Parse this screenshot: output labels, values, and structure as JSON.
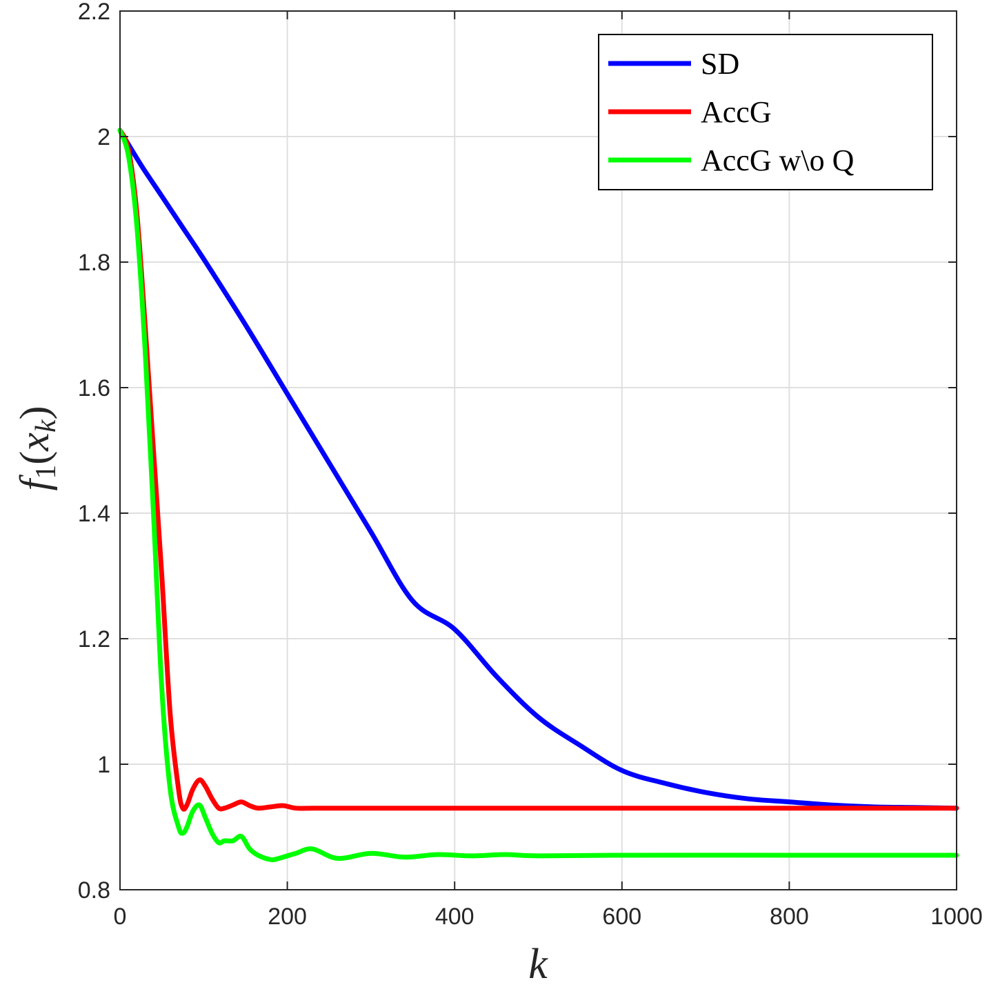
{
  "chart_data": {
    "type": "line",
    "title": "",
    "xlabel": "k",
    "ylabel": "f_1(x_k)",
    "ylabel_parts": {
      "f": "f",
      "sub1": "1",
      "open": "(",
      "x": "x",
      "subk": "k",
      "close": ")"
    },
    "xlim": [
      0,
      1000
    ],
    "ylim": [
      0.8,
      2.2
    ],
    "xticks": [
      0,
      200,
      400,
      600,
      800,
      1000
    ],
    "xtick_labels": [
      "0",
      "200",
      "400",
      "600",
      "800",
      "1000"
    ],
    "yticks": [
      0.8,
      1.0,
      1.2,
      1.4,
      1.6,
      1.8,
      2.0,
      2.2
    ],
    "ytick_labels": [
      "0.8",
      "1",
      "1.2",
      "1.4",
      "1.6",
      "1.8",
      "2",
      "2.2"
    ],
    "grid": true,
    "legend_position": "top-right",
    "series": [
      {
        "name": "SD",
        "color": "#0000ff",
        "x": [
          0,
          25,
          50,
          75,
          100,
          150,
          200,
          250,
          300,
          350,
          400,
          450,
          500,
          550,
          600,
          650,
          700,
          750,
          800,
          850,
          900,
          950,
          1000
        ],
        "y": [
          2.01,
          1.955,
          1.905,
          1.855,
          1.805,
          1.7,
          1.59,
          1.48,
          1.37,
          1.26,
          1.215,
          1.14,
          1.075,
          1.03,
          0.99,
          0.97,
          0.955,
          0.945,
          0.94,
          0.935,
          0.932,
          0.931,
          0.93
        ]
      },
      {
        "name": "AccG",
        "color": "#ff0000",
        "x": [
          0,
          10,
          20,
          30,
          40,
          50,
          60,
          70,
          75,
          80,
          87,
          95,
          102,
          110,
          118,
          125,
          135,
          145,
          155,
          165,
          180,
          195,
          210,
          230,
          250,
          300,
          400,
          600,
          800,
          1000
        ],
        "y": [
          2.01,
          1.98,
          1.88,
          1.7,
          1.5,
          1.3,
          1.08,
          0.96,
          0.93,
          0.935,
          0.96,
          0.975,
          0.965,
          0.945,
          0.93,
          0.93,
          0.935,
          0.94,
          0.934,
          0.93,
          0.932,
          0.934,
          0.93,
          0.93,
          0.93,
          0.93,
          0.93,
          0.93,
          0.93,
          0.93
        ]
      },
      {
        "name": "AccG w\\o Q",
        "color": "#00ff00",
        "x": [
          0,
          10,
          20,
          30,
          40,
          50,
          60,
          70,
          75,
          80,
          87,
          95,
          102,
          110,
          118,
          125,
          135,
          145,
          155,
          165,
          180,
          190,
          210,
          230,
          260,
          300,
          340,
          380,
          420,
          460,
          500,
          600,
          800,
          1000
        ],
        "y": [
          2.01,
          1.97,
          1.86,
          1.66,
          1.4,
          1.12,
          0.96,
          0.9,
          0.89,
          0.9,
          0.925,
          0.935,
          0.915,
          0.89,
          0.875,
          0.878,
          0.878,
          0.885,
          0.865,
          0.855,
          0.848,
          0.85,
          0.858,
          0.865,
          0.85,
          0.858,
          0.852,
          0.856,
          0.854,
          0.856,
          0.854,
          0.855,
          0.855,
          0.855
        ]
      }
    ]
  }
}
